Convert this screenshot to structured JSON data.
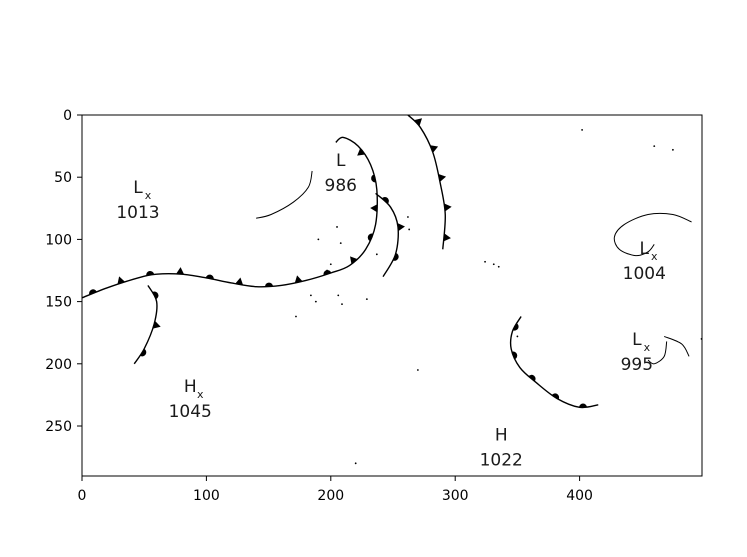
{
  "axes": {
    "x_ticks": [
      0,
      100,
      200,
      300,
      400
    ],
    "y_ticks": [
      0,
      50,
      100,
      150,
      200,
      250
    ],
    "xlim": [
      0,
      500
    ],
    "ylim": [
      0,
      290
    ],
    "y_inverted": true,
    "grid": false
  },
  "pressure_systems": [
    {
      "letter": "L",
      "pressure": "1013",
      "x": 45,
      "y": 58,
      "marked": true
    },
    {
      "letter": "L",
      "pressure": "986",
      "x": 208,
      "y": 36,
      "marked": false
    },
    {
      "letter": "L",
      "pressure": "1004",
      "x": 452,
      "y": 107,
      "marked": true
    },
    {
      "letter": "L",
      "pressure": "995",
      "x": 446,
      "y": 180,
      "marked": true
    },
    {
      "letter": "H",
      "pressure": "1045",
      "x": 87,
      "y": 218,
      "marked": true
    },
    {
      "letter": "H",
      "pressure": "1022",
      "x": 337,
      "y": 257,
      "marked": false
    }
  ],
  "fronts": [
    {
      "type": "stationary",
      "points": [
        [
          0,
          147
        ],
        [
          20,
          139
        ],
        [
          45,
          131
        ],
        [
          60,
          128
        ],
        [
          80,
          128
        ],
        [
          100,
          131
        ],
        [
          120,
          135
        ],
        [
          140,
          138
        ],
        [
          160,
          137
        ],
        [
          180,
          133
        ],
        [
          200,
          127
        ],
        [
          215,
          121
        ],
        [
          228,
          108
        ],
        [
          236,
          88
        ],
        [
          237,
          60
        ],
        [
          232,
          40
        ],
        [
          222,
          25
        ],
        [
          210,
          18
        ],
        [
          204,
          22
        ]
      ]
    },
    {
      "type": "cold",
      "points": [
        [
          262,
          0
        ],
        [
          272,
          10
        ],
        [
          282,
          30
        ],
        [
          288,
          55
        ],
        [
          292,
          80
        ],
        [
          290,
          108
        ]
      ]
    },
    {
      "type": "occluded",
      "points": [
        [
          236,
          63
        ],
        [
          248,
          74
        ],
        [
          254,
          90
        ],
        [
          252,
          112
        ],
        [
          242,
          130
        ]
      ]
    },
    {
      "type": "occluded",
      "points": [
        [
          53,
          137
        ],
        [
          60,
          150
        ],
        [
          58,
          168
        ],
        [
          50,
          188
        ],
        [
          42,
          200
        ]
      ]
    },
    {
      "type": "warm",
      "points": [
        [
          353,
          162
        ],
        [
          346,
          174
        ],
        [
          345,
          188
        ],
        [
          352,
          203
        ],
        [
          365,
          215
        ],
        [
          382,
          228
        ],
        [
          400,
          235
        ],
        [
          415,
          233
        ]
      ]
    }
  ],
  "isobars": [
    {
      "points": [
        [
          185,
          45
        ],
        [
          182,
          58
        ],
        [
          170,
          70
        ],
        [
          152,
          80
        ],
        [
          140,
          83
        ]
      ]
    },
    {
      "points": [
        [
          460,
          104
        ],
        [
          455,
          110
        ],
        [
          445,
          113
        ],
        [
          432,
          108
        ],
        [
          428,
          98
        ],
        [
          436,
          88
        ],
        [
          455,
          80
        ],
        [
          475,
          80
        ],
        [
          490,
          86
        ]
      ]
    },
    {
      "points": [
        [
          470,
          182
        ],
        [
          468,
          194
        ],
        [
          460,
          200
        ],
        [
          455,
          197
        ]
      ]
    },
    {
      "points": [
        [
          468,
          178
        ],
        [
          482,
          184
        ],
        [
          488,
          194
        ]
      ]
    }
  ]
}
